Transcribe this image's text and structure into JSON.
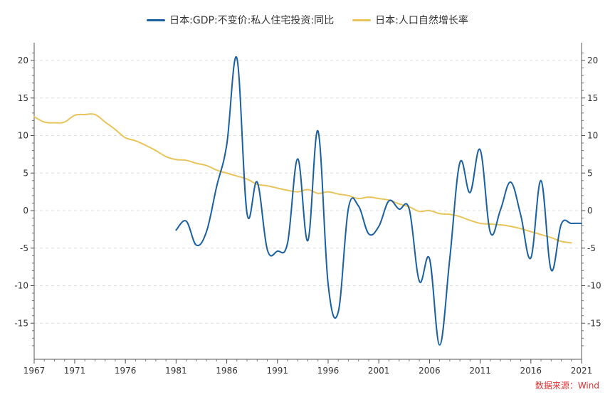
{
  "chart_data": {
    "type": "line",
    "title": "",
    "xlabel": "",
    "ylabel": "",
    "xlim": [
      1967,
      2021
    ],
    "ylim": [
      -19,
      22
    ],
    "x_ticks": [
      "1967",
      "1971",
      "1976",
      "1981",
      "1986",
      "1991",
      "1996",
      "2001",
      "2006",
      "2011",
      "2016",
      "2021"
    ],
    "y_ticks": [
      "20",
      "15",
      "10",
      "5",
      "0",
      "-5",
      "-10",
      "-15"
    ],
    "legend_position": "top-center",
    "grid": "horizontal-dashed",
    "series": [
      {
        "name": "日本:GDP:不变价:私人住宅投资:同比",
        "color": "#1a5fa0",
        "x": [
          1981,
          1982,
          1983,
          1984,
          1985,
          1986,
          1987,
          1988,
          1989,
          1990,
          1991,
          1992,
          1993,
          1994,
          1995,
          1996,
          1997,
          1998,
          1999,
          2000,
          2001,
          2002,
          2003,
          2004,
          2005,
          2006,
          2007,
          2008,
          2009,
          2010,
          2011,
          2012,
          2013,
          2014,
          2015,
          2016,
          2017,
          2018,
          2019,
          2020,
          2021
        ],
        "values": [
          -2.6,
          -1.4,
          -4.6,
          -2.8,
          3.2,
          8.8,
          20.3,
          -0.4,
          3.8,
          -5.2,
          -5.4,
          -4.3,
          6.9,
          -4.0,
          10.6,
          -9.8,
          -13.5,
          0.3,
          0.6,
          -3.1,
          -2.1,
          1.3,
          0.2,
          0.2,
          -9.4,
          -6.4,
          -17.9,
          -6.4,
          6.4,
          2.4,
          8.1,
          -2.9,
          0.1,
          3.8,
          -0.6,
          -6.3,
          4.0,
          -7.9,
          -1.8,
          -1.7,
          -1.7
        ]
      },
      {
        "name": "日本:人口自然增长率",
        "color": "#e8c45a",
        "x": [
          1967,
          1968,
          1969,
          1970,
          1971,
          1972,
          1973,
          1974,
          1975,
          1976,
          1977,
          1978,
          1979,
          1980,
          1981,
          1982,
          1983,
          1984,
          1985,
          1986,
          1987,
          1988,
          1989,
          1990,
          1991,
          1992,
          1993,
          1994,
          1995,
          1996,
          1997,
          1998,
          1999,
          2000,
          2001,
          2002,
          2003,
          2004,
          2005,
          2006,
          2007,
          2008,
          2009,
          2010,
          2011,
          2012,
          2013,
          2014,
          2015,
          2016,
          2017,
          2018,
          2019,
          2020
        ],
        "values": [
          12.5,
          11.8,
          11.7,
          11.8,
          12.7,
          12.8,
          12.8,
          11.8,
          10.8,
          9.7,
          9.3,
          8.7,
          8.0,
          7.2,
          6.8,
          6.7,
          6.3,
          6.0,
          5.4,
          5.0,
          4.6,
          4.2,
          3.5,
          3.3,
          3.0,
          2.7,
          2.5,
          2.8,
          2.3,
          2.5,
          2.2,
          2.0,
          1.6,
          1.8,
          1.6,
          1.4,
          0.9,
          0.5,
          -0.1,
          0.0,
          -0.4,
          -0.5,
          -0.8,
          -1.3,
          -1.7,
          -1.8,
          -1.9,
          -2.1,
          -2.4,
          -2.8,
          -3.2,
          -3.6,
          -4.1,
          -4.3
        ]
      }
    ]
  },
  "source": "数据来源：Wind"
}
